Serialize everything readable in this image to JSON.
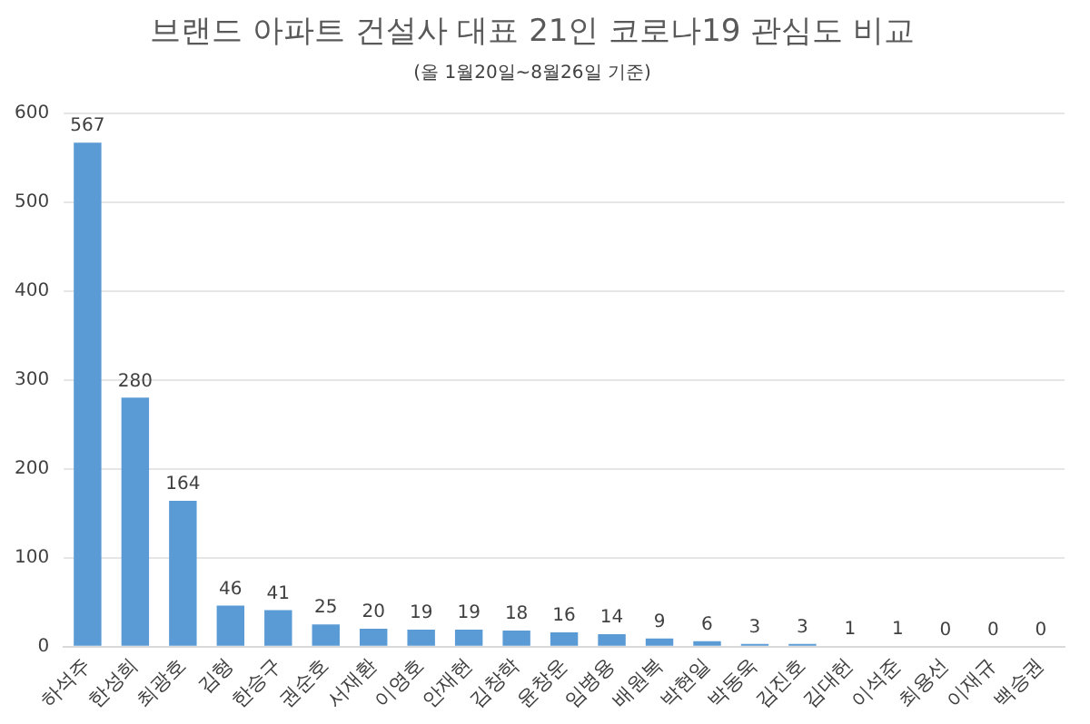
{
  "chart_data": {
    "type": "bar",
    "title": "브랜드 아파트 건설사 대표 21인 코로나19 관심도 비교",
    "subtitle": "(올 1월20일~8월26일 기준)",
    "categories": [
      "하석주",
      "한성희",
      "최광호",
      "김형",
      "한승구",
      "권순호",
      "서재환",
      "이영호",
      "안재현",
      "김창학",
      "윤창운",
      "임병용",
      "배원복",
      "박현일",
      "박동욱",
      "김진호",
      "김대헌",
      "이석준",
      "최용선",
      "이재규",
      "백승권"
    ],
    "values": [
      567,
      280,
      164,
      46,
      41,
      25,
      20,
      19,
      19,
      18,
      16,
      14,
      9,
      6,
      3,
      3,
      1,
      1,
      0,
      0,
      0
    ],
    "color": "#5b9bd5",
    "ylim": [
      0,
      600
    ],
    "yticks": [
      0,
      100,
      200,
      300,
      400,
      500,
      600
    ],
    "grid": "y",
    "data_labels": true
  }
}
